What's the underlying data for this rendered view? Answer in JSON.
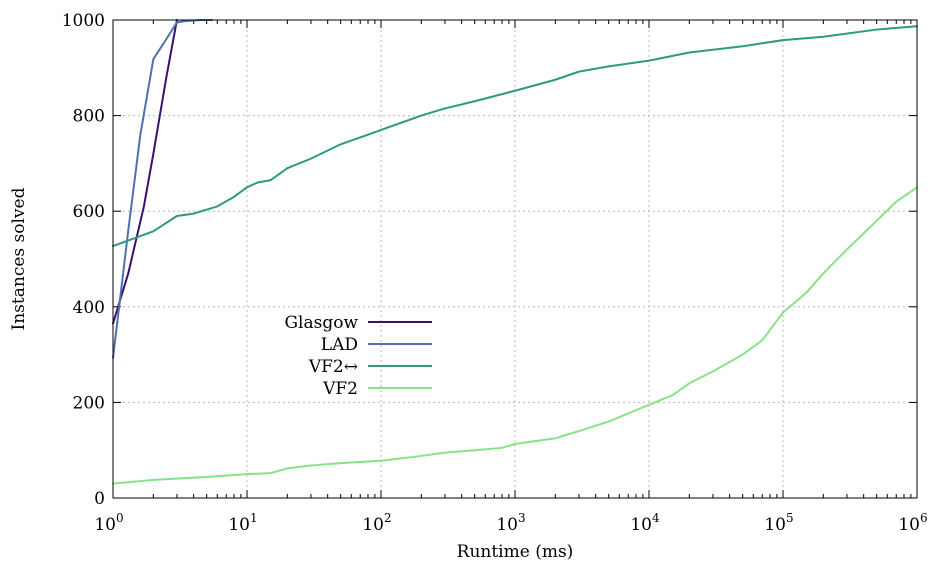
{
  "chart_data": {
    "type": "line",
    "xlabel": "Runtime (ms)",
    "ylabel": "Instances solved",
    "xscale": "log",
    "xlim": [
      1,
      1000000
    ],
    "ylim": [
      0,
      1000
    ],
    "x_ticks": [
      {
        "base": "10",
        "exp": "0",
        "value": 1
      },
      {
        "base": "10",
        "exp": "1",
        "value": 10
      },
      {
        "base": "10",
        "exp": "2",
        "value": 100
      },
      {
        "base": "10",
        "exp": "3",
        "value": 1000
      },
      {
        "base": "10",
        "exp": "4",
        "value": 10000
      },
      {
        "base": "10",
        "exp": "5",
        "value": 100000
      },
      {
        "base": "10",
        "exp": "6",
        "value": 1000000
      }
    ],
    "y_ticks": [
      "0",
      "200",
      "400",
      "600",
      "800",
      "1000"
    ],
    "grid": true,
    "legend_position": "center-left",
    "series": [
      {
        "name": "Glasgow",
        "color": "#3b0f70",
        "points": [
          [
            1,
            365
          ],
          [
            1.3,
            470
          ],
          [
            1.7,
            610
          ],
          [
            2,
            720
          ],
          [
            2.5,
            880
          ],
          [
            3,
            1000
          ]
        ]
      },
      {
        "name": "LAD",
        "color": "#4e6fb0",
        "points": [
          [
            1,
            293
          ],
          [
            1.3,
            560
          ],
          [
            1.6,
            760
          ],
          [
            2,
            918
          ],
          [
            2.5,
            960
          ],
          [
            3,
            995
          ],
          [
            3.5,
            998
          ],
          [
            4.5,
            1000
          ],
          [
            5.5,
            1000
          ]
        ]
      },
      {
        "name": "VF2↔",
        "color": "#2b9b7f",
        "points": [
          [
            1,
            527
          ],
          [
            1.5,
            545
          ],
          [
            2,
            558
          ],
          [
            3,
            590
          ],
          [
            4,
            595
          ],
          [
            6,
            610
          ],
          [
            8,
            630
          ],
          [
            10,
            650
          ],
          [
            12,
            660
          ],
          [
            15,
            665
          ],
          [
            20,
            690
          ],
          [
            30,
            710
          ],
          [
            50,
            740
          ],
          [
            80,
            760
          ],
          [
            100,
            770
          ],
          [
            200,
            800
          ],
          [
            300,
            815
          ],
          [
            500,
            830
          ],
          [
            1000,
            852
          ],
          [
            2000,
            875
          ],
          [
            3000,
            892
          ],
          [
            5000,
            903
          ],
          [
            10000,
            915
          ],
          [
            20000,
            932
          ],
          [
            50000,
            945
          ],
          [
            100000,
            958
          ],
          [
            200000,
            965
          ],
          [
            500000,
            980
          ],
          [
            1000000,
            987
          ]
        ]
      },
      {
        "name": "VF2",
        "color": "#88e388",
        "points": [
          [
            1,
            30
          ],
          [
            2,
            38
          ],
          [
            5,
            44
          ],
          [
            10,
            50
          ],
          [
            15,
            52
          ],
          [
            20,
            62
          ],
          [
            30,
            68
          ],
          [
            50,
            73
          ],
          [
            100,
            78
          ],
          [
            200,
            88
          ],
          [
            300,
            95
          ],
          [
            500,
            100
          ],
          [
            800,
            105
          ],
          [
            1000,
            113
          ],
          [
            2000,
            125
          ],
          [
            3000,
            140
          ],
          [
            5000,
            160
          ],
          [
            10000,
            195
          ],
          [
            15000,
            215
          ],
          [
            20000,
            240
          ],
          [
            30000,
            265
          ],
          [
            50000,
            300
          ],
          [
            70000,
            330
          ],
          [
            100000,
            388
          ],
          [
            150000,
            430
          ],
          [
            200000,
            470
          ],
          [
            300000,
            520
          ],
          [
            500000,
            580
          ],
          [
            700000,
            620
          ],
          [
            1000000,
            650
          ]
        ]
      }
    ]
  }
}
